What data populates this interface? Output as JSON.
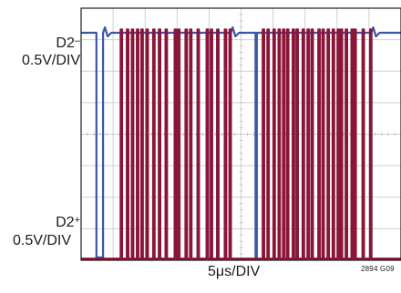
{
  "channels": [
    {
      "name": "D2",
      "mark": "–",
      "scale": "0.5V/DIV",
      "color": "#3a56a8"
    },
    {
      "name": "D2",
      "mark": "+",
      "scale": "0.5V/DIV",
      "color": "#8a1538"
    }
  ],
  "xlabel": "5μs/DIV",
  "figure_id": "2894 G09",
  "chart_data": {
    "type": "line",
    "title": "",
    "xlabel": "5μs/DIV",
    "ylabel": "",
    "grid": true,
    "x_divisions": 10,
    "y_divisions": 8,
    "series": [
      {
        "name": "D2–",
        "color": "#3a56a8",
        "level_divs": {
          "high": 7.22,
          "low": 0.09
        },
        "segments": [
          [
            0,
            "H"
          ],
          [
            2.4,
            "L"
          ],
          [
            3.43,
            "H"
          ],
          [
            6.2,
            "L"
          ],
          [
            6.4,
            "H"
          ],
          [
            7.17,
            "L"
          ],
          [
            7.37,
            "H"
          ],
          [
            7.93,
            "L"
          ],
          [
            8.13,
            "H"
          ],
          [
            8.73,
            "L"
          ],
          [
            8.93,
            "H"
          ],
          [
            9.43,
            "L"
          ],
          [
            9.63,
            "H"
          ],
          [
            10.23,
            "L"
          ],
          [
            10.43,
            "H"
          ],
          [
            11.27,
            "L"
          ],
          [
            11.47,
            "H"
          ],
          [
            12.17,
            "L"
          ],
          [
            12.37,
            "H"
          ],
          [
            13.2,
            "L"
          ],
          [
            13.4,
            "H"
          ],
          [
            14.63,
            "L"
          ],
          [
            14.83,
            "H"
          ],
          [
            15.17,
            "L"
          ],
          [
            15.37,
            "H"
          ],
          [
            16.33,
            "L"
          ],
          [
            16.53,
            "H"
          ],
          [
            17.03,
            "L"
          ],
          [
            17.23,
            "H"
          ],
          [
            18.2,
            "L"
          ],
          [
            18.4,
            "H"
          ],
          [
            19.63,
            "L"
          ],
          [
            19.83,
            "H"
          ],
          [
            20.27,
            "L"
          ],
          [
            20.47,
            "H"
          ],
          [
            21.27,
            "L"
          ],
          [
            21.47,
            "H"
          ],
          [
            22.47,
            "L"
          ],
          [
            22.67,
            "H"
          ],
          [
            23.2,
            "L"
          ],
          [
            23.4,
            "H"
          ],
          [
            27.27,
            "L"
          ],
          [
            27.47,
            "H"
          ],
          [
            28.4,
            "L"
          ],
          [
            28.6,
            "H"
          ],
          [
            29.13,
            "L"
          ],
          [
            29.33,
            "H"
          ],
          [
            30.07,
            "L"
          ],
          [
            30.27,
            "H"
          ],
          [
            30.87,
            "L"
          ],
          [
            31.07,
            "H"
          ],
          [
            31.57,
            "L"
          ],
          [
            31.77,
            "H"
          ],
          [
            32.2,
            "L"
          ],
          [
            32.4,
            "H"
          ],
          [
            33.07,
            "L"
          ],
          [
            33.27,
            "H"
          ],
          [
            33.67,
            "L"
          ],
          [
            33.87,
            "H"
          ],
          [
            34.63,
            "L"
          ],
          [
            34.83,
            "H"
          ],
          [
            35.4,
            "L"
          ],
          [
            35.6,
            "H"
          ],
          [
            36.03,
            "L"
          ],
          [
            36.23,
            "H"
          ],
          [
            37.1,
            "L"
          ],
          [
            37.3,
            "H"
          ],
          [
            37.73,
            "L"
          ],
          [
            37.93,
            "H"
          ],
          [
            38.53,
            "L"
          ],
          [
            38.73,
            "H"
          ],
          [
            39.33,
            "L"
          ],
          [
            39.53,
            "H"
          ],
          [
            40.1,
            "L"
          ],
          [
            40.3,
            "H"
          ],
          [
            40.6,
            "L"
          ],
          [
            40.8,
            "H"
          ],
          [
            41.37,
            "L"
          ],
          [
            41.57,
            "H"
          ],
          [
            42.27,
            "L"
          ],
          [
            42.47,
            "H"
          ],
          [
            42.73,
            "L"
          ],
          [
            42.93,
            "H"
          ],
          [
            44.0,
            "L"
          ],
          [
            44.2,
            "H"
          ],
          [
            45.17,
            "L"
          ],
          [
            45.37,
            "H"
          ]
        ]
      },
      {
        "name": "D2+",
        "color": "#8a1538",
        "level_divs": {
          "high": 7.32,
          "low": 0.05
        },
        "segments": [
          [
            0,
            "L"
          ],
          [
            6.2,
            "H"
          ],
          [
            6.4,
            "L"
          ],
          [
            7.17,
            "H"
          ],
          [
            7.37,
            "L"
          ],
          [
            7.93,
            "H"
          ],
          [
            8.13,
            "L"
          ],
          [
            8.73,
            "H"
          ],
          [
            8.93,
            "L"
          ],
          [
            9.43,
            "H"
          ],
          [
            9.63,
            "L"
          ],
          [
            10.23,
            "H"
          ],
          [
            10.43,
            "L"
          ],
          [
            11.27,
            "H"
          ],
          [
            11.47,
            "L"
          ],
          [
            12.17,
            "H"
          ],
          [
            12.37,
            "L"
          ],
          [
            13.2,
            "H"
          ],
          [
            13.4,
            "L"
          ],
          [
            14.63,
            "H"
          ],
          [
            14.83,
            "L"
          ],
          [
            15.17,
            "H"
          ],
          [
            15.37,
            "L"
          ],
          [
            16.33,
            "H"
          ],
          [
            16.53,
            "L"
          ],
          [
            17.03,
            "H"
          ],
          [
            17.23,
            "L"
          ],
          [
            18.2,
            "H"
          ],
          [
            18.4,
            "L"
          ],
          [
            19.63,
            "H"
          ],
          [
            19.83,
            "L"
          ],
          [
            20.27,
            "H"
          ],
          [
            20.47,
            "L"
          ],
          [
            21.27,
            "H"
          ],
          [
            21.47,
            "L"
          ],
          [
            22.47,
            "H"
          ],
          [
            22.67,
            "L"
          ],
          [
            23.2,
            "H"
          ],
          [
            23.4,
            "L"
          ],
          [
            28.4,
            "H"
          ],
          [
            28.6,
            "L"
          ],
          [
            29.13,
            "H"
          ],
          [
            29.33,
            "L"
          ],
          [
            30.07,
            "H"
          ],
          [
            30.27,
            "L"
          ],
          [
            30.87,
            "H"
          ],
          [
            31.07,
            "L"
          ],
          [
            31.57,
            "H"
          ],
          [
            31.77,
            "L"
          ],
          [
            32.2,
            "H"
          ],
          [
            32.4,
            "L"
          ],
          [
            33.07,
            "H"
          ],
          [
            33.27,
            "L"
          ],
          [
            33.67,
            "H"
          ],
          [
            33.87,
            "L"
          ],
          [
            34.63,
            "H"
          ],
          [
            34.83,
            "L"
          ],
          [
            35.4,
            "H"
          ],
          [
            35.6,
            "L"
          ],
          [
            36.03,
            "H"
          ],
          [
            36.23,
            "L"
          ],
          [
            37.1,
            "H"
          ],
          [
            37.3,
            "L"
          ],
          [
            37.73,
            "H"
          ],
          [
            37.93,
            "L"
          ],
          [
            38.53,
            "H"
          ],
          [
            38.73,
            "L"
          ],
          [
            39.33,
            "H"
          ],
          [
            39.53,
            "L"
          ],
          [
            40.1,
            "H"
          ],
          [
            40.3,
            "L"
          ],
          [
            40.6,
            "H"
          ],
          [
            40.8,
            "L"
          ],
          [
            41.37,
            "H"
          ],
          [
            41.57,
            "L"
          ],
          [
            42.27,
            "H"
          ],
          [
            42.47,
            "L"
          ],
          [
            42.73,
            "H"
          ],
          [
            42.93,
            "L"
          ],
          [
            44.0,
            "H"
          ],
          [
            44.2,
            "L"
          ],
          [
            45.17,
            "H"
          ],
          [
            45.37,
            "L"
          ]
        ]
      }
    ],
    "x_range_us": [
      0,
      50
    ]
  }
}
